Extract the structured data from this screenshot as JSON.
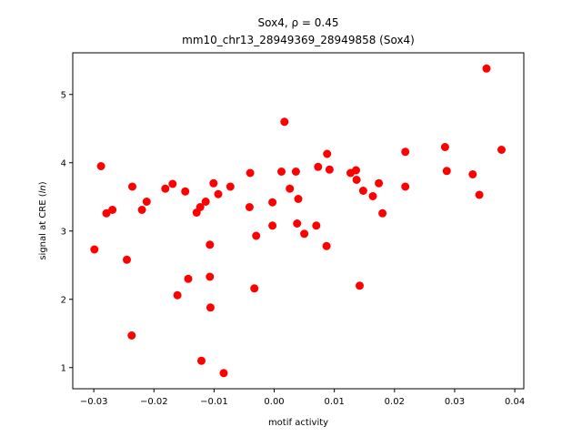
{
  "chart_data": {
    "type": "scatter",
    "title_line1": "Sox4, ρ = 0.45",
    "title_line2": "mm10_chr13_28949369_28949858 (Sox4)",
    "xlabel": "motif activity",
    "ylabel_prefix": "signal at CRE (",
    "ylabel_italic": "ln",
    "ylabel_suffix": ")",
    "xlim": [
      -0.0335,
      0.0415
    ],
    "ylim": [
      0.69,
      5.61
    ],
    "xticks": [
      -0.03,
      -0.02,
      -0.01,
      0.0,
      0.01,
      0.02,
      0.03,
      0.04
    ],
    "xtick_labels": [
      "−0.03",
      "−0.02",
      "−0.01",
      "0.00",
      "0.01",
      "0.02",
      "0.03",
      "0.04"
    ],
    "yticks": [
      1,
      2,
      3,
      4,
      5
    ],
    "ytick_labels": [
      "1",
      "2",
      "3",
      "4",
      "5"
    ],
    "grid": false,
    "marker_color": "#ff0000",
    "points": [
      {
        "x": -0.0299,
        "y": 2.73
      },
      {
        "x": -0.0288,
        "y": 3.95
      },
      {
        "x": -0.0279,
        "y": 3.26
      },
      {
        "x": -0.0269,
        "y": 3.31
      },
      {
        "x": -0.0245,
        "y": 2.58
      },
      {
        "x": -0.0236,
        "y": 3.65
      },
      {
        "x": -0.0237,
        "y": 1.47
      },
      {
        "x": -0.022,
        "y": 3.31
      },
      {
        "x": -0.0212,
        "y": 3.43
      },
      {
        "x": -0.0181,
        "y": 3.62
      },
      {
        "x": -0.0169,
        "y": 3.69
      },
      {
        "x": -0.0161,
        "y": 2.06
      },
      {
        "x": -0.0148,
        "y": 3.58
      },
      {
        "x": -0.0143,
        "y": 2.3
      },
      {
        "x": -0.0129,
        "y": 3.27
      },
      {
        "x": -0.0123,
        "y": 3.35
      },
      {
        "x": -0.0121,
        "y": 1.1
      },
      {
        "x": -0.0114,
        "y": 3.43
      },
      {
        "x": -0.0107,
        "y": 2.33
      },
      {
        "x": -0.0107,
        "y": 2.8
      },
      {
        "x": -0.0106,
        "y": 1.88
      },
      {
        "x": -0.0101,
        "y": 3.7
      },
      {
        "x": -0.0093,
        "y": 3.54
      },
      {
        "x": -0.0084,
        "y": 0.92
      },
      {
        "x": -0.0073,
        "y": 3.65
      },
      {
        "x": -0.0041,
        "y": 3.35
      },
      {
        "x": -0.004,
        "y": 3.85
      },
      {
        "x": -0.003,
        "y": 2.93
      },
      {
        "x": -0.0033,
        "y": 2.16
      },
      {
        "x": -0.0003,
        "y": 3.42
      },
      {
        "x": -0.0003,
        "y": 3.08
      },
      {
        "x": 0.0012,
        "y": 3.87
      },
      {
        "x": 0.0017,
        "y": 4.6
      },
      {
        "x": 0.0026,
        "y": 3.62
      },
      {
        "x": 0.0036,
        "y": 3.87
      },
      {
        "x": 0.0038,
        "y": 3.11
      },
      {
        "x": 0.004,
        "y": 3.47
      },
      {
        "x": 0.005,
        "y": 2.96
      },
      {
        "x": 0.007,
        "y": 3.08
      },
      {
        "x": 0.0073,
        "y": 3.94
      },
      {
        "x": 0.0087,
        "y": 2.78
      },
      {
        "x": 0.0088,
        "y": 4.13
      },
      {
        "x": 0.0092,
        "y": 3.9
      },
      {
        "x": 0.0127,
        "y": 3.85
      },
      {
        "x": 0.0136,
        "y": 3.89
      },
      {
        "x": 0.0137,
        "y": 3.75
      },
      {
        "x": 0.0142,
        "y": 2.2
      },
      {
        "x": 0.0148,
        "y": 3.59
      },
      {
        "x": 0.0164,
        "y": 3.51
      },
      {
        "x": 0.0174,
        "y": 3.7
      },
      {
        "x": 0.018,
        "y": 3.26
      },
      {
        "x": 0.0218,
        "y": 4.16
      },
      {
        "x": 0.0218,
        "y": 3.65
      },
      {
        "x": 0.0284,
        "y": 4.23
      },
      {
        "x": 0.0287,
        "y": 3.88
      },
      {
        "x": 0.033,
        "y": 3.83
      },
      {
        "x": 0.0341,
        "y": 3.53
      },
      {
        "x": 0.0353,
        "y": 5.38
      },
      {
        "x": 0.0378,
        "y": 4.19
      }
    ]
  }
}
